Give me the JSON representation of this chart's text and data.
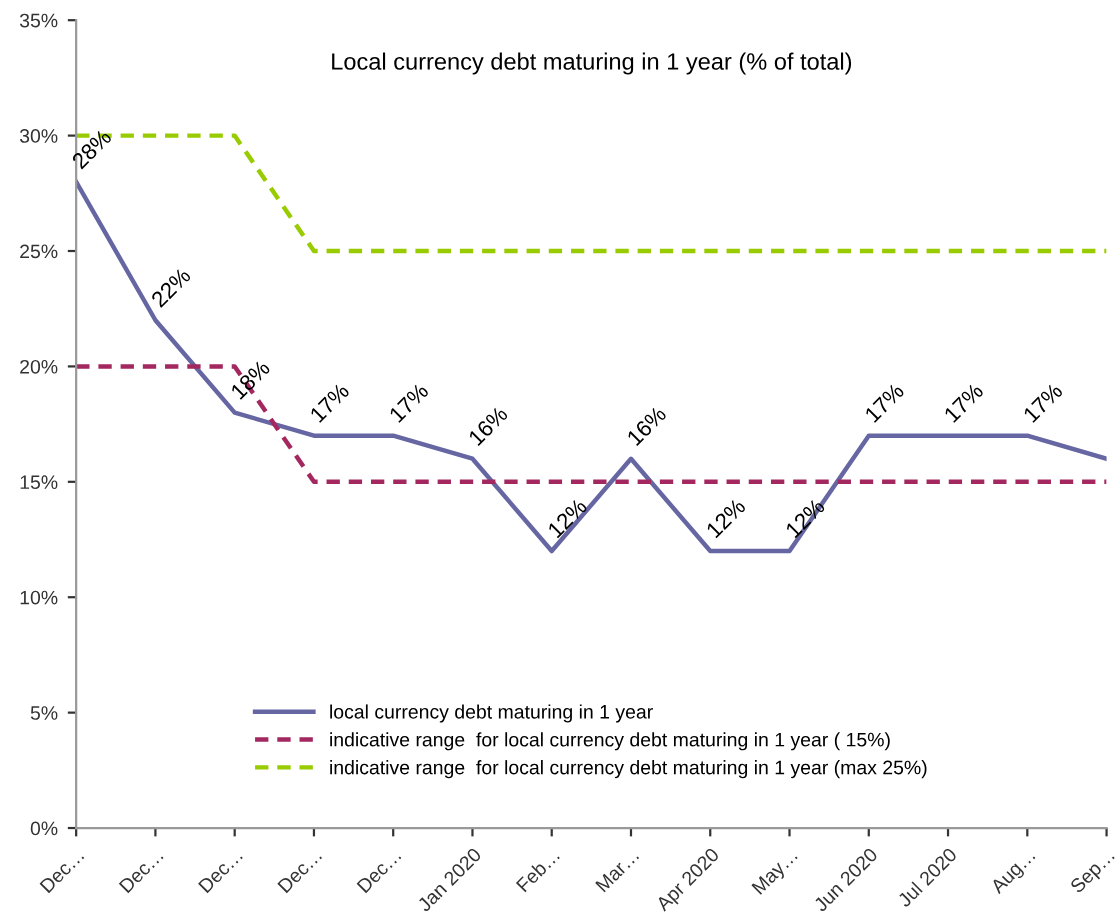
{
  "chart_data": {
    "type": "line",
    "title": "Local currency debt maturing in 1 year (% of total)",
    "categories": [
      "Dec…",
      "Dec…",
      "Dec…",
      "Dec…",
      "Dec…",
      "Jan 2020",
      "Feb…",
      "Mar…",
      "Apr 2020",
      "May…",
      "Jun 2020",
      "Jul 2020",
      "Aug…",
      "Sep…"
    ],
    "series": [
      {
        "name": "local currency debt maturing in 1 year",
        "color": "#6666a3",
        "line_style": "solid",
        "values": [
          28,
          22,
          18,
          17,
          17,
          16,
          12,
          16,
          12,
          12,
          17,
          17,
          17,
          16
        ],
        "value_labels": [
          "28%",
          "22%",
          "18%",
          "17%",
          "17%",
          "16%",
          "12%",
          "16%",
          "12%",
          "12%",
          "17%",
          "17%",
          "17%",
          null
        ]
      },
      {
        "name": "indicative range  for local currency debt maturing in 1 year ( 15%)",
        "color": "#a3285f",
        "line_style": "dashed",
        "values": [
          20,
          20,
          20,
          15,
          15,
          15,
          15,
          15,
          15,
          15,
          15,
          15,
          15,
          15
        ]
      },
      {
        "name": "indicative range  for local currency debt maturing in 1 year (max 25%)",
        "color": "#99cc00",
        "line_style": "dashed",
        "values": [
          30,
          30,
          30,
          25,
          25,
          25,
          25,
          25,
          25,
          25,
          25,
          25,
          25,
          25
        ]
      }
    ],
    "ylim": [
      0,
      35
    ],
    "yticks": [
      {
        "value": 0,
        "label": "0%"
      },
      {
        "value": 5,
        "label": "5%"
      },
      {
        "value": 10,
        "label": "10%"
      },
      {
        "value": 15,
        "label": "15%"
      },
      {
        "value": 20,
        "label": "20%"
      },
      {
        "value": 25,
        "label": "25%"
      },
      {
        "value": 30,
        "label": "30%"
      },
      {
        "value": 35,
        "label": "35%"
      }
    ],
    "grid": false,
    "legend": "bottom",
    "marker": "none"
  }
}
